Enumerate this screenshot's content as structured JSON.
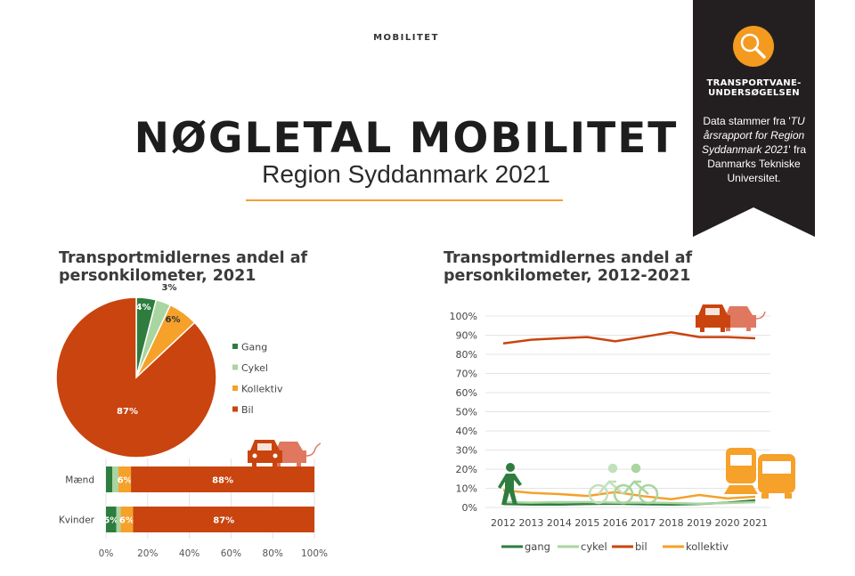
{
  "header": {
    "kicker": "MOBILITET",
    "title": "NØGLETAL MOBILITET",
    "subtitle": "Region Syddanmark 2021"
  },
  "banner": {
    "icon": "magnifier-icon",
    "heading_line1": "TRANSPORTVANE-",
    "heading_line2": "UNDERSØGELSEN",
    "text_prefix": "Data stammer fra '",
    "text_italic": "TU årsrapport for Region Syddanmark 2021",
    "text_suffix": "' fra Danmarks Tekniske Universitet.",
    "bg_color": "#231f20",
    "icon_color": "#f39a1f"
  },
  "colors": {
    "gang": "#2e7d3e",
    "cykel": "#a9d5a0",
    "kollektiv": "#f5a12a",
    "bil": "#c9440e"
  },
  "chart_data": [
    {
      "type": "pie",
      "title": "Transportmidlernes andel af personkilometer, 2021",
      "categories": [
        "Gang",
        "Cykel",
        "Kollektiv",
        "Bil"
      ],
      "values": [
        4,
        3,
        6,
        87
      ],
      "data_labels": [
        "4%",
        "3%",
        "6%",
        "87%"
      ],
      "legend": "right"
    },
    {
      "type": "bar",
      "orientation": "horizontal-stacked",
      "categories": [
        "Mænd",
        "Kvinder"
      ],
      "series": [
        {
          "name": "Gang",
          "values": [
            3,
            5
          ],
          "labels": [
            "",
            "5%"
          ]
        },
        {
          "name": "Cykel",
          "values": [
            3,
            2
          ],
          "labels": [
            "",
            ""
          ]
        },
        {
          "name": "Kollektiv",
          "values": [
            6,
            6
          ],
          "labels": [
            "6%",
            "6%"
          ]
        },
        {
          "name": "Bil",
          "values": [
            88,
            87
          ],
          "labels": [
            "88%",
            "87%"
          ]
        }
      ],
      "xlim": [
        0,
        100
      ],
      "xticks": [
        "0%",
        "20%",
        "40%",
        "60%",
        "80%",
        "100%"
      ]
    },
    {
      "type": "line",
      "title": "Transportmidlernes andel af personkilometer, 2012-2021",
      "x": [
        2012,
        2013,
        2014,
        2015,
        2016,
        2017,
        2018,
        2019,
        2020,
        2021
      ],
      "series": [
        {
          "name": "gang",
          "values": [
            1.8,
            1.5,
            1.5,
            1.8,
            2.0,
            1.7,
            1.5,
            1.8,
            2.5,
            3.7
          ]
        },
        {
          "name": "cykel",
          "values": [
            2.8,
            2.5,
            2.8,
            2.8,
            2.5,
            2.5,
            2.3,
            2.0,
            2.3,
            2.8
          ]
        },
        {
          "name": "bil",
          "values": [
            85.7,
            87.6,
            88.4,
            89.0,
            86.8,
            89.1,
            91.5,
            89.0,
            89.0,
            88.4
          ]
        },
        {
          "name": "kollektiv",
          "values": [
            9.0,
            7.6,
            7.0,
            6.0,
            8.0,
            5.9,
            4.3,
            6.5,
            4.7,
            5.6
          ]
        }
      ],
      "ylim": [
        0,
        100
      ],
      "yticks": [
        "0%",
        "10%",
        "20%",
        "30%",
        "40%",
        "50%",
        "60%",
        "70%",
        "80%",
        "90%",
        "100%"
      ],
      "grid": true,
      "legend": "bottom"
    }
  ]
}
